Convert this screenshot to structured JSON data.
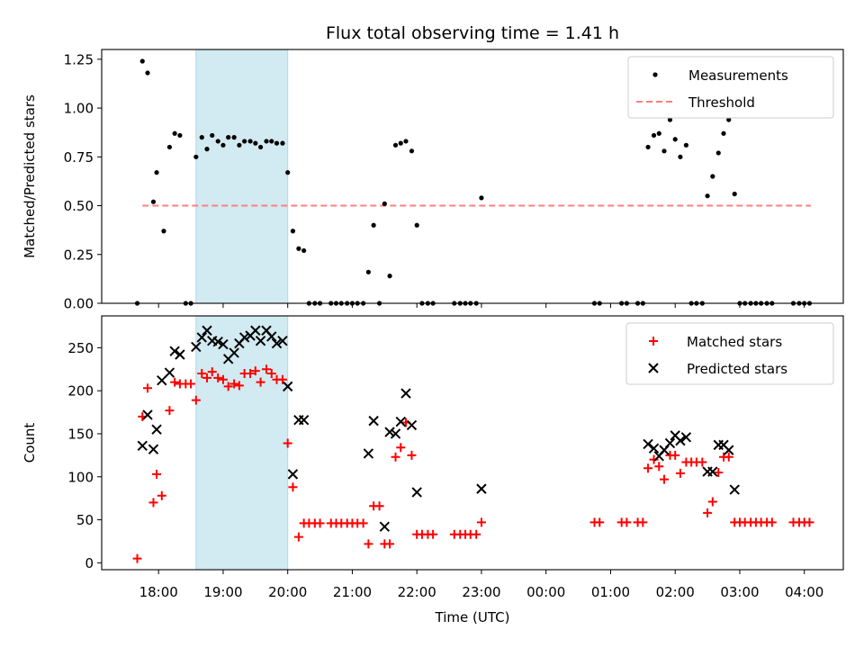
{
  "figure": {
    "title": "Flux total observing time = 1.41 h",
    "xlabel": "Time (UTC)",
    "x_tick_labels": [
      "18:00",
      "19:00",
      "20:00",
      "21:00",
      "22:00",
      "23:00",
      "00:00",
      "01:00",
      "02:00",
      "03:00",
      "04:00"
    ],
    "highlight_span": {
      "start_h": 18.58,
      "end_h": 20.0,
      "color": "#add8e6"
    }
  },
  "chart_data": [
    {
      "type": "scatter",
      "name": "ratio-panel",
      "ylabel": "Matched/Predicted stars",
      "ylim": [
        0,
        1.3
      ],
      "y_tick_values": [
        0,
        0.25,
        0.5,
        0.75,
        1.0,
        1.25
      ],
      "y_tick_labels": [
        "0.00",
        "0.25",
        "0.50",
        "0.75",
        "1.00",
        "1.25"
      ],
      "legend": {
        "position": "top-right",
        "labels": [
          "Measurements",
          "Threshold"
        ]
      },
      "threshold": {
        "label": "Threshold",
        "value": 0.5,
        "x_start": 17.75,
        "x_end": 28.1,
        "color": "#ff7f7f"
      },
      "series": [
        {
          "name": "Measurements",
          "color": "#000000",
          "x": [
            17.67,
            17.75,
            17.83,
            17.92,
            17.97,
            18.08,
            18.17,
            18.25,
            18.33,
            18.42,
            18.5,
            18.58,
            18.67,
            18.75,
            18.83,
            18.92,
            19.0,
            19.08,
            19.17,
            19.25,
            19.33,
            19.42,
            19.5,
            19.58,
            19.67,
            19.75,
            19.83,
            19.92,
            20.0,
            20.08,
            20.17,
            20.25,
            20.33,
            20.42,
            20.5,
            20.67,
            20.75,
            20.83,
            20.92,
            21.0,
            21.08,
            21.17,
            21.25,
            21.33,
            21.42,
            21.5,
            21.58,
            21.67,
            21.75,
            21.83,
            21.92,
            22.0,
            22.08,
            22.17,
            22.25,
            22.58,
            22.67,
            22.75,
            22.83,
            22.92,
            23.0,
            24.75,
            24.83,
            25.17,
            25.25,
            25.42,
            25.5,
            25.58,
            25.67,
            25.75,
            25.83,
            25.92,
            26.0,
            26.08,
            26.17,
            26.25,
            26.33,
            26.42,
            26.5,
            26.58,
            26.67,
            26.75,
            26.83,
            26.92,
            27.0,
            27.08,
            27.17,
            27.25,
            27.33,
            27.42,
            27.5,
            27.83,
            27.92,
            28.0,
            28.08
          ],
          "y": [
            0.0,
            1.24,
            1.18,
            0.52,
            0.67,
            0.37,
            0.8,
            0.87,
            0.86,
            0.0,
            0.0,
            0.75,
            0.85,
            0.79,
            0.86,
            0.83,
            0.81,
            0.85,
            0.85,
            0.81,
            0.83,
            0.83,
            0.82,
            0.8,
            0.83,
            0.83,
            0.82,
            0.82,
            0.67,
            0.37,
            0.28,
            0.27,
            0.0,
            0.0,
            0.0,
            0.0,
            0.0,
            0.0,
            0.0,
            0.0,
            0.0,
            0.0,
            0.16,
            0.4,
            0.0,
            0.51,
            0.14,
            0.81,
            0.82,
            0.83,
            0.78,
            0.4,
            0.0,
            0.0,
            0.0,
            0.0,
            0.0,
            0.0,
            0.0,
            0.0,
            0.54,
            0.0,
            0.0,
            0.0,
            0.0,
            0.0,
            0.0,
            0.8,
            0.86,
            0.87,
            0.78,
            0.94,
            0.84,
            0.75,
            0.81,
            0.0,
            0.0,
            0.0,
            0.55,
            0.65,
            0.77,
            0.87,
            0.94,
            0.56,
            0.0,
            0.0,
            0.0,
            0.0,
            0.0,
            0.0,
            0.0,
            0.0,
            0.0,
            0.0,
            0.0
          ]
        }
      ]
    },
    {
      "type": "scatter",
      "name": "count-panel",
      "ylabel": "Count",
      "ylim": [
        -8,
        287
      ],
      "y_tick_values": [
        0,
        50,
        100,
        150,
        200,
        250
      ],
      "y_tick_labels": [
        "0",
        "50",
        "100",
        "150",
        "200",
        "250"
      ],
      "legend": {
        "position": "top-right",
        "labels": [
          "Matched stars",
          "Predicted stars"
        ]
      },
      "series": [
        {
          "name": "Matched stars",
          "color": "#ff0000",
          "marker": "plus",
          "x": [
            17.67,
            17.75,
            17.83,
            17.92,
            17.97,
            18.05,
            18.17,
            18.25,
            18.33,
            18.42,
            18.5,
            18.58,
            18.67,
            18.75,
            18.83,
            18.92,
            19.0,
            19.08,
            19.17,
            19.25,
            19.33,
            19.42,
            19.5,
            19.58,
            19.67,
            19.75,
            19.83,
            19.92,
            20.0,
            20.08,
            20.17,
            20.25,
            20.33,
            20.42,
            20.5,
            20.67,
            20.75,
            20.83,
            20.92,
            21.0,
            21.08,
            21.17,
            21.25,
            21.33,
            21.42,
            21.5,
            21.58,
            21.67,
            21.75,
            21.83,
            21.92,
            22.0,
            22.08,
            22.17,
            22.25,
            22.58,
            22.67,
            22.75,
            22.83,
            22.92,
            23.0,
            24.75,
            24.83,
            25.17,
            25.25,
            25.42,
            25.5,
            25.58,
            25.67,
            25.75,
            25.83,
            25.92,
            26.0,
            26.08,
            26.17,
            26.25,
            26.33,
            26.42,
            26.5,
            26.58,
            26.67,
            26.75,
            26.83,
            26.92,
            27.0,
            27.08,
            27.17,
            27.25,
            27.33,
            27.42,
            27.5,
            27.83,
            27.92,
            28.0,
            28.08
          ],
          "y": [
            5,
            170,
            203,
            70,
            103,
            78,
            177,
            210,
            208,
            208,
            208,
            189,
            220,
            215,
            222,
            215,
            213,
            205,
            208,
            206,
            220,
            220,
            223,
            210,
            225,
            220,
            213,
            213,
            139,
            88,
            30,
            46,
            46,
            46,
            46,
            46,
            46,
            46,
            46,
            46,
            46,
            46,
            22,
            66,
            66,
            22,
            22,
            123,
            134,
            163,
            125,
            33,
            33,
            33,
            33,
            33,
            33,
            33,
            33,
            33,
            47,
            47,
            47,
            47,
            47,
            47,
            47,
            110,
            120,
            112,
            97,
            125,
            125,
            104,
            117,
            117,
            117,
            117,
            58,
            71,
            105,
            123,
            123,
            47,
            47,
            47,
            47,
            47,
            47,
            47,
            47,
            47,
            47,
            47,
            47
          ]
        },
        {
          "name": "Predicted stars",
          "color": "#000000",
          "marker": "x",
          "x": [
            17.75,
            17.83,
            17.92,
            17.97,
            18.05,
            18.17,
            18.25,
            18.33,
            18.58,
            18.67,
            18.75,
            18.83,
            18.92,
            19.0,
            19.08,
            19.17,
            19.25,
            19.33,
            19.42,
            19.5,
            19.58,
            19.67,
            19.75,
            19.83,
            19.92,
            20.0,
            20.08,
            20.17,
            20.25,
            21.25,
            21.33,
            21.5,
            21.58,
            21.67,
            21.75,
            21.83,
            21.92,
            22.0,
            23.0,
            25.58,
            25.67,
            25.75,
            25.83,
            25.92,
            26.0,
            26.08,
            26.17,
            26.5,
            26.58,
            26.67,
            26.75,
            26.83,
            26.92
          ],
          "y": [
            136,
            172,
            132,
            155,
            212,
            221,
            246,
            242,
            251,
            262,
            270,
            258,
            257,
            254,
            237,
            244,
            255,
            262,
            264,
            270,
            258,
            270,
            263,
            255,
            258,
            205,
            103,
            166,
            166,
            127,
            165,
            42,
            152,
            150,
            164,
            197,
            160,
            82,
            86,
            138,
            133,
            124,
            131,
            139,
            148,
            142,
            146,
            106,
            106,
            137,
            137,
            131,
            85
          ]
        }
      ]
    }
  ]
}
